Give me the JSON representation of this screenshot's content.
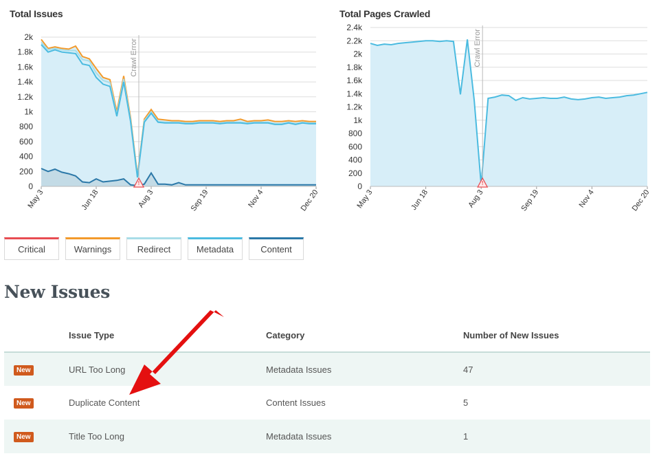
{
  "charts": {
    "issues": {
      "title": "Total Issues",
      "crawl_error_label": "Crawl Error",
      "y_ticks": [
        "2k",
        "1.8k",
        "1.6k",
        "1.4k",
        "1.2k",
        "1k",
        "800",
        "600",
        "400",
        "200",
        "0"
      ],
      "x_ticks": [
        "May 3",
        "Jun 18",
        "Aug 3",
        "Sep 19",
        "Nov 4",
        "Dec 20"
      ]
    },
    "pages": {
      "title": "Total Pages Crawled",
      "crawl_error_label": "Crawl Error",
      "y_ticks": [
        "2.4k",
        "2.2k",
        "2k",
        "1.8k",
        "1.6k",
        "1.4k",
        "1.2k",
        "1k",
        "800",
        "600",
        "400",
        "200",
        "0"
      ],
      "x_ticks": [
        "May 3",
        "Jun 18",
        "Aug 3",
        "Sep 19",
        "Nov 4",
        "Dec 20"
      ]
    }
  },
  "chart_data": [
    {
      "type": "area",
      "title": "Total Issues",
      "xlabel": "",
      "ylabel": "",
      "ylim": [
        0,
        2000
      ],
      "x": [
        "May 3",
        "",
        "",
        "",
        "",
        "",
        "",
        "",
        "Jun 18",
        "",
        "",
        "",
        "",
        "",
        "",
        "",
        "Aug 3",
        "",
        "",
        "",
        "",
        "",
        "",
        "",
        "Sep 19",
        "",
        "",
        "",
        "",
        "",
        "",
        "",
        "Nov 4",
        "",
        "",
        "",
        "",
        "",
        "",
        "",
        "Dec 20"
      ],
      "series": [
        {
          "name": "Warnings",
          "values": [
            1970,
            1850,
            1870,
            1850,
            1840,
            1880,
            1740,
            1710,
            1580,
            1460,
            1430,
            1000,
            1480,
            920,
            150,
            900,
            1030,
            900,
            890,
            880,
            880,
            870,
            870,
            880,
            880,
            880,
            870,
            880,
            880,
            900,
            870,
            880,
            880,
            890,
            870,
            870,
            880,
            870,
            880,
            870,
            870
          ]
        },
        {
          "name": "Redirect",
          "values": [
            1930,
            1830,
            1850,
            1830,
            1820,
            1820,
            1700,
            1680,
            1520,
            1420,
            1390,
            960,
            1440,
            890,
            130,
            880,
            1000,
            870,
            860,
            860,
            860,
            850,
            850,
            860,
            860,
            860,
            850,
            860,
            860,
            860,
            850,
            860,
            860,
            860,
            840,
            840,
            860,
            840,
            860,
            850,
            850
          ]
        },
        {
          "name": "Metadata",
          "values": [
            1900,
            1800,
            1830,
            1800,
            1790,
            1780,
            1640,
            1620,
            1460,
            1370,
            1340,
            940,
            1400,
            870,
            120,
            860,
            980,
            860,
            850,
            850,
            850,
            840,
            840,
            850,
            850,
            850,
            840,
            850,
            850,
            850,
            840,
            850,
            850,
            850,
            830,
            830,
            850,
            830,
            850,
            840,
            840
          ]
        },
        {
          "name": "Content",
          "values": [
            240,
            200,
            230,
            190,
            170,
            140,
            60,
            50,
            100,
            60,
            70,
            80,
            100,
            20,
            10,
            30,
            180,
            30,
            30,
            20,
            50,
            20,
            20,
            20,
            20,
            20,
            20,
            20,
            20,
            20,
            20,
            20,
            20,
            20,
            20,
            20,
            20,
            20,
            20,
            20,
            20
          ]
        }
      ],
      "annotations": [
        "Crawl Error"
      ]
    },
    {
      "type": "area",
      "title": "Total Pages Crawled",
      "xlabel": "",
      "ylabel": "",
      "ylim": [
        0,
        2400
      ],
      "x": [
        "May 3",
        "",
        "",
        "",
        "",
        "",
        "",
        "",
        "Jun 18",
        "",
        "",
        "",
        "",
        "",
        "",
        "",
        "Aug 3",
        "",
        "",
        "",
        "",
        "",
        "",
        "",
        "Sep 19",
        "",
        "",
        "",
        "",
        "",
        "",
        "",
        "Nov 4",
        "",
        "",
        "",
        "",
        "",
        "",
        "",
        "Dec 20"
      ],
      "series": [
        {
          "name": "Pages",
          "values": [
            2160,
            2130,
            2150,
            2140,
            2160,
            2170,
            2180,
            2190,
            2200,
            2200,
            2190,
            2200,
            2190,
            1390,
            2220,
            1300,
            20,
            1330,
            1350,
            1380,
            1370,
            1300,
            1340,
            1320,
            1330,
            1340,
            1330,
            1330,
            1350,
            1320,
            1310,
            1320,
            1340,
            1350,
            1330,
            1340,
            1350,
            1370,
            1380,
            1400,
            1420
          ]
        }
      ],
      "annotations": [
        "Crawl Error"
      ]
    }
  ],
  "legend": [
    {
      "label": "Critical",
      "color": "#e84c52"
    },
    {
      "label": "Warnings",
      "color": "#f39a2b"
    },
    {
      "label": "Redirect",
      "color": "#a8dde8"
    },
    {
      "label": "Metadata",
      "color": "#4bbbe0"
    },
    {
      "label": "Content",
      "color": "#2b78a8"
    }
  ],
  "new_issues": {
    "title": "New Issues",
    "columns": [
      "Issue Type",
      "Category",
      "Number of New Issues"
    ],
    "badge": "New",
    "rows": [
      {
        "type": "URL Too Long",
        "category": "Metadata Issues",
        "count": "47"
      },
      {
        "type": "Duplicate Content",
        "category": "Content Issues",
        "count": "5"
      },
      {
        "type": "Title Too Long",
        "category": "Metadata Issues",
        "count": "1"
      }
    ]
  },
  "colors": {
    "area_fill": "#d7eef8",
    "line_main": "#4bbbe0",
    "content_line": "#2b78a8",
    "warnings_line": "#f39a2b",
    "critical_line": "#e84c52",
    "crawl_error_line": "#bbbbbb",
    "badge": "#d05a1d",
    "row_shade": "#eef6f4",
    "arrow": "#e41010"
  }
}
